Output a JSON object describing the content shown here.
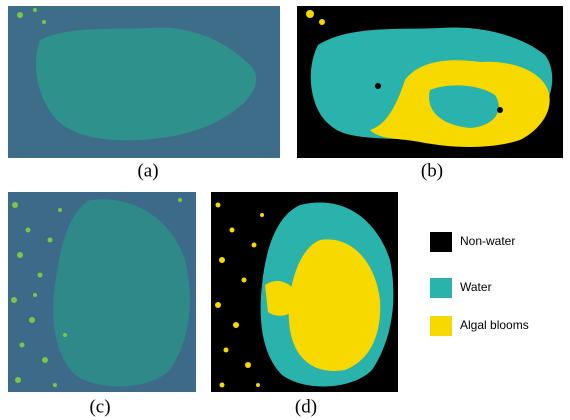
{
  "figure": {
    "panels": [
      {
        "caption": "(a)"
      },
      {
        "caption": "(b)"
      },
      {
        "caption": "(c)"
      },
      {
        "caption": "(d)"
      }
    ],
    "legend": [
      {
        "label": "Non-water",
        "color": "#000000"
      },
      {
        "label": "Water",
        "color": "#2ab3ad"
      },
      {
        "label": "Algal blooms",
        "color": "#f7d900"
      }
    ]
  }
}
